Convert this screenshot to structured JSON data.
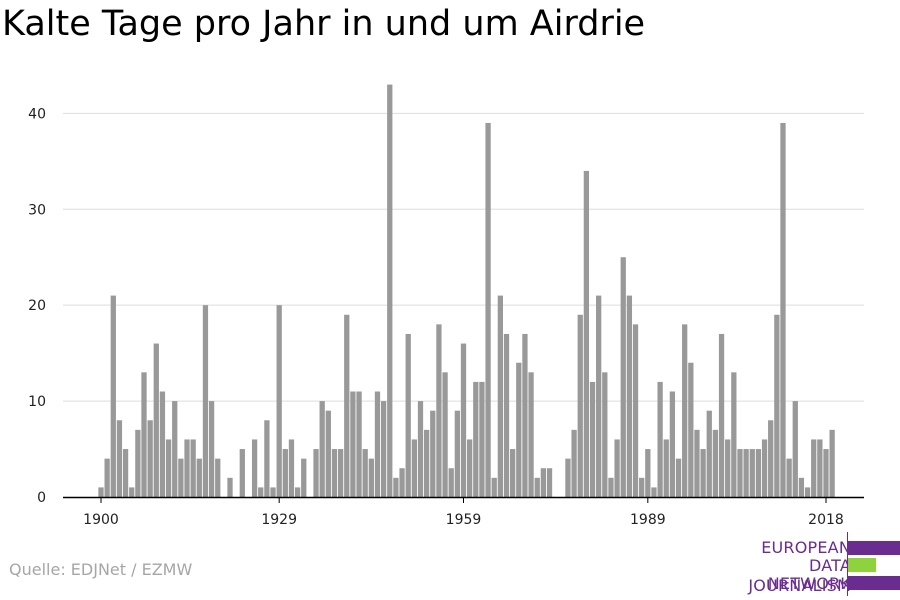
{
  "title": "Kalte Tage pro Jahr in und um Airdrie",
  "source": "Quelle: EDJNet / EZMW",
  "logo": {
    "lines": [
      "EUROPEAN",
      "DATA JOURNALISM",
      "NETWORK"
    ],
    "colors": {
      "purple": "#6a2c8e",
      "green": "#8ed33d"
    }
  },
  "colors": {
    "bar": "#999999",
    "grid": "#dddddd",
    "axis": "#000000"
  },
  "chart_data": {
    "type": "bar",
    "title": "Kalte Tage pro Jahr in und um Airdrie",
    "xlabel": "",
    "ylabel": "",
    "x_start": 1900,
    "x_end": 2018,
    "x_ticks": [
      "1900",
      "1929",
      "1959",
      "1989",
      "2018"
    ],
    "y_ticks": [
      0,
      10,
      20,
      30,
      40
    ],
    "ylim": [
      0,
      44
    ],
    "grid": true,
    "values": [
      1,
      4,
      21,
      8,
      5,
      1,
      7,
      13,
      8,
      16,
      11,
      6,
      10,
      4,
      6,
      6,
      4,
      20,
      10,
      4,
      0,
      2,
      0,
      5,
      0,
      6,
      1,
      8,
      1,
      20,
      5,
      6,
      1,
      4,
      0,
      5,
      10,
      9,
      5,
      5,
      19,
      11,
      11,
      5,
      4,
      11,
      10,
      43,
      2,
      3,
      17,
      6,
      10,
      7,
      9,
      18,
      13,
      3,
      9,
      16,
      6,
      12,
      12,
      39,
      2,
      21,
      17,
      5,
      14,
      17,
      13,
      2,
      3,
      3,
      0,
      0,
      4,
      7,
      19,
      34,
      12,
      21,
      13,
      2,
      6,
      25,
      21,
      18,
      2,
      5,
      1,
      12,
      6,
      11,
      4,
      18,
      14,
      7,
      5,
      9,
      7,
      17,
      6,
      13,
      5,
      5,
      5,
      5,
      6,
      8,
      19,
      39,
      4,
      10,
      2,
      1,
      6,
      6,
      5,
      7
    ]
  }
}
